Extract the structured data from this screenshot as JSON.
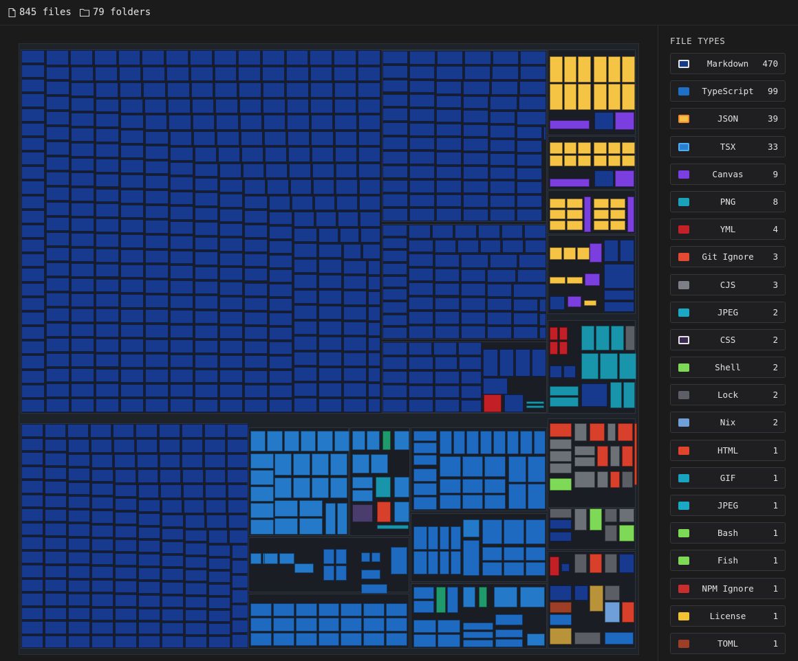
{
  "header": {
    "files_label": "845 files",
    "folders_label": "79 folders"
  },
  "legend": {
    "title": "FILE TYPES",
    "items": [
      {
        "label": "Markdown",
        "count": "470",
        "color": "#143a8c",
        "outline": "#e6e6e6"
      },
      {
        "label": "TypeScript",
        "count": "99",
        "color": "#1f6fc4"
      },
      {
        "label": "JSON",
        "count": "39",
        "color": "#f5c048",
        "outline": "#f08c30"
      },
      {
        "label": "TSX",
        "count": "33",
        "color": "#2a7fd0",
        "outline": "#4cb0f0"
      },
      {
        "label": "Canvas",
        "count": "9",
        "color": "#7a3fe0"
      },
      {
        "label": "PNG",
        "count": "8",
        "color": "#1aa3b8"
      },
      {
        "label": "YML",
        "count": "4",
        "color": "#c42027"
      },
      {
        "label": "Git Ignore",
        "count": "3",
        "color": "#e34a33"
      },
      {
        "label": "CJS",
        "count": "3",
        "color": "#7c7f85"
      },
      {
        "label": "JPEG",
        "count": "2",
        "color": "#1aa8c4"
      },
      {
        "label": "CSS",
        "count": "2",
        "color": "#3c2a55",
        "outline": "#e6e6e6"
      },
      {
        "label": "Shell",
        "count": "2",
        "color": "#7ed957"
      },
      {
        "label": "Lock",
        "count": "2",
        "color": "#5c5f66"
      },
      {
        "label": "Nix",
        "count": "2",
        "color": "#6f9fd8"
      },
      {
        "label": "HTML",
        "count": "1",
        "color": "#e0452c"
      },
      {
        "label": "GIF",
        "count": "1",
        "color": "#1aa3c0"
      },
      {
        "label": "JPEG",
        "count": "1",
        "color": "#1aa8c4"
      },
      {
        "label": "Bash",
        "count": "1",
        "color": "#7ed957"
      },
      {
        "label": "Fish",
        "count": "1",
        "color": "#7ed957"
      },
      {
        "label": "NPM Ignore",
        "count": "1",
        "color": "#c82e2e"
      },
      {
        "label": "License",
        "count": "1",
        "color": "#f2c233"
      },
      {
        "label": "TOML",
        "count": "1",
        "color": "#9c3f26"
      }
    ]
  },
  "treemap": {
    "colors": {
      "markdown": "#173a8f",
      "typescript": "#1d6ac0",
      "json": "#f6c445",
      "tsx": "#2479c9",
      "canvas": "#7b3fe0",
      "png": "#1895ab",
      "yml": "#c22026",
      "gitignore": "#d8402c",
      "cjs": "#6c7077",
      "shell": "#7ed957",
      "lock": "#5b5e65",
      "nix": "#6f9fd8",
      "toml": "#9c3f26",
      "license": "#b8933a",
      "css": "#4a3c6c",
      "test": "#1f9a6c"
    }
  }
}
